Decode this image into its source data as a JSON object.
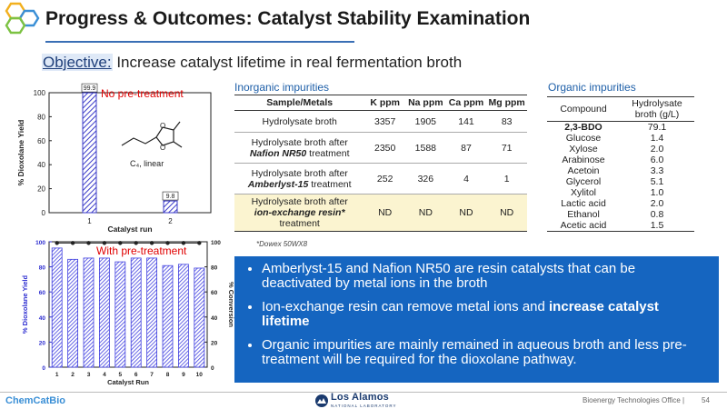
{
  "header": {
    "title": "Progress & Outcomes: Catalyst Stability Examination",
    "objective_label": "Objective:",
    "objective_text": " Increase catalyst lifetime in real fermentation broth"
  },
  "chart1": {
    "annotation": "No pre-treatment",
    "molecule_label": "C₄, linear"
  },
  "chart2": {
    "annotation": "With pre-treatment"
  },
  "chart_data": [
    {
      "type": "bar",
      "categories": [
        "1",
        "2"
      ],
      "values": [
        99.9,
        9.8
      ],
      "data_labels": [
        "99.9",
        "9.8"
      ],
      "ylabel": "% Dioxolane Yield",
      "xlabel": "Catalyst run",
      "ylim": [
        0,
        100
      ],
      "yticks": [
        "0",
        "20",
        "40",
        "60",
        "80",
        "100"
      ],
      "bar_color": "#3b3bc8"
    },
    {
      "type": "bar",
      "categories": [
        "1",
        "2",
        "3",
        "4",
        "5",
        "6",
        "7",
        "8",
        "9",
        "10"
      ],
      "series": [
        {
          "values": [
            95,
            86,
            87,
            87,
            84,
            87,
            87,
            81,
            82,
            79
          ]
        },
        {
          "values": [
            99,
            99,
            99,
            99,
            99,
            99,
            99,
            99,
            99,
            99
          ]
        }
      ],
      "ylabel": "% Dioxolane Yield",
      "y2label": "% Conversion",
      "xlabel": "Catalyst Run",
      "ylim": [
        0,
        100
      ],
      "y2lim": [
        0,
        100
      ],
      "yticks": [
        "0",
        "20",
        "40",
        "60",
        "80",
        "100"
      ],
      "bar_color": "#4040e0"
    }
  ],
  "inorganic": {
    "title": "Inorganic impurities",
    "headers": [
      "Sample/Metals",
      "K ppm",
      "Na ppm",
      "Ca ppm",
      "Mg ppm"
    ],
    "rows": [
      {
        "sample_pre": "Hydrolysate broth",
        "sample_em": "",
        "sample_post": "",
        "k": "3357",
        "na": "1905",
        "ca": "141",
        "mg": "83"
      },
      {
        "sample_pre": "Hydrolysate broth after",
        "sample_em": "Nafion NR50",
        "sample_post": " treatment",
        "k": "2350",
        "na": "1588",
        "ca": "87",
        "mg": "71"
      },
      {
        "sample_pre": "Hydrolysate broth after",
        "sample_em": "Amberlyst-15",
        "sample_post": " treatment",
        "k": "252",
        "na": "326",
        "ca": "4",
        "mg": "1"
      },
      {
        "sample_pre": "Hydrolysate broth after",
        "sample_em": "ion-exchange resin*",
        "sample_post": " treatment",
        "k": "ND",
        "na": "ND",
        "ca": "ND",
        "mg": "ND"
      }
    ],
    "footnote": "*Dowex 50WX8"
  },
  "organic": {
    "title": "Organic impurities",
    "headers": [
      "Compound",
      "Hydrolysate broth (g/L)"
    ],
    "rows": [
      {
        "compound": "2,3-BDO",
        "value": "79.1"
      },
      {
        "compound": "Glucose",
        "value": "1.4"
      },
      {
        "compound": "Xylose",
        "value": "2.0"
      },
      {
        "compound": "Arabinose",
        "value": "6.0"
      },
      {
        "compound": "Acetoin",
        "value": "3.3"
      },
      {
        "compound": "Glycerol",
        "value": "5.1"
      },
      {
        "compound": "Xylitol",
        "value": "1.0"
      },
      {
        "compound": "Lactic acid",
        "value": "2.0"
      },
      {
        "compound": "Ethanol",
        "value": "0.8"
      },
      {
        "compound": "Acetic acid",
        "value": "1.5"
      }
    ]
  },
  "bullets": {
    "b1": "Amberlyst-15 and Nafion NR50 are resin catalysts that can be deactivated by metal ions in the broth",
    "b2_pre": "Ion-exchange resin can remove metal ions and ",
    "b2_hl": "increase catalyst lifetime",
    "b3": "Organic impurities are mainly remained in aqueous broth and less pre-treatment will be required for the dioxolane pathway."
  },
  "footer": {
    "brand": "ChemCatBio",
    "lab": "Los Alamos",
    "lab_sub": "NATIONAL LABORATORY",
    "office": "Bioenergy Technologies Office  |",
    "page": "54"
  }
}
